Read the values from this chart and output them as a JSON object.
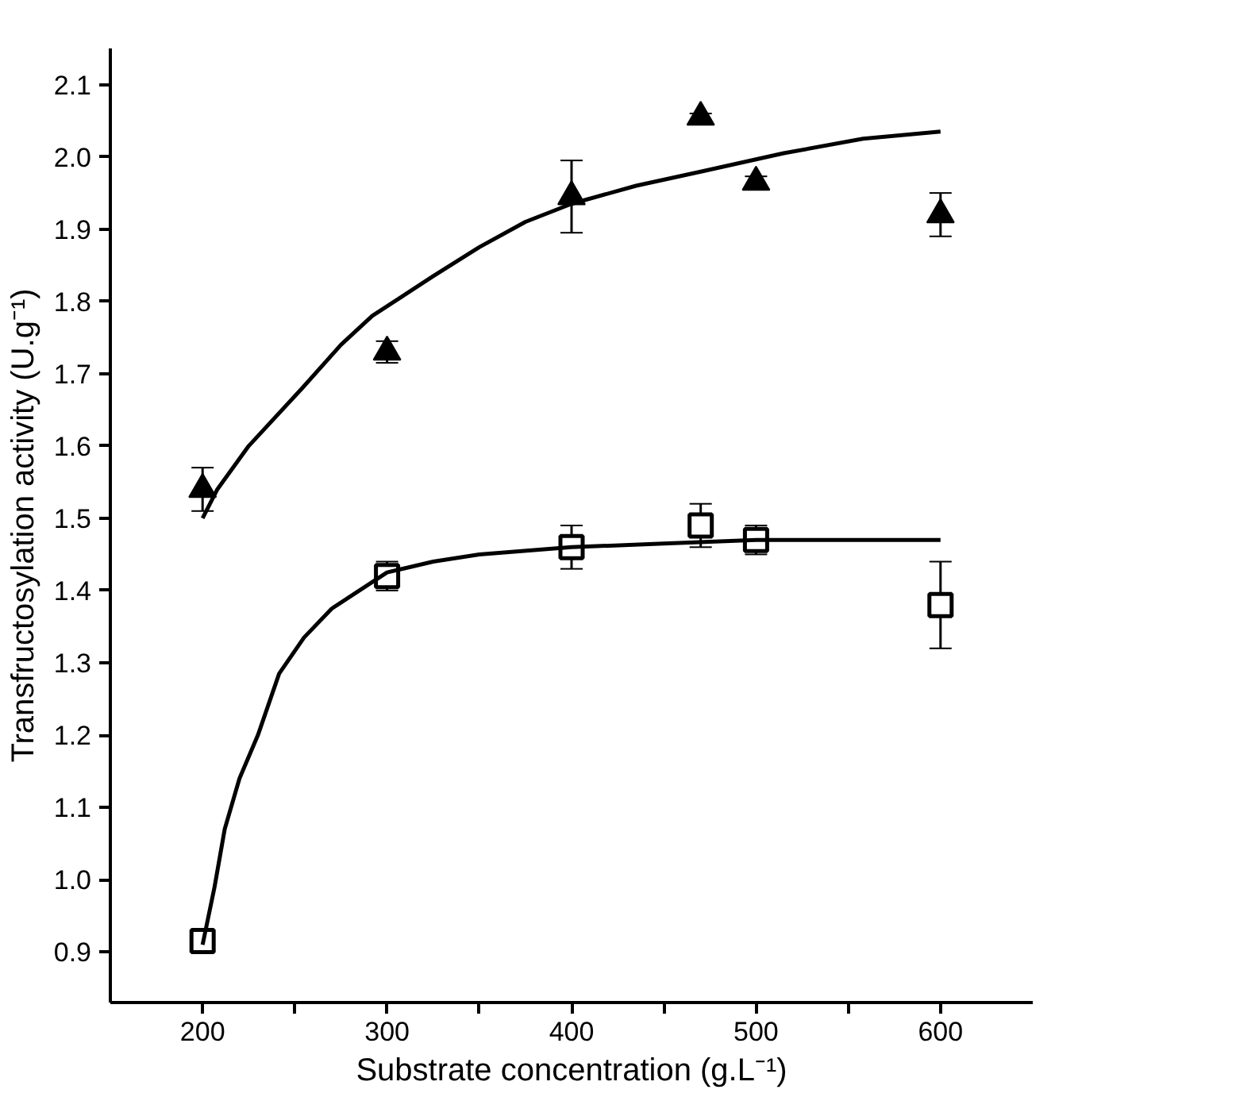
{
  "chart_data": {
    "type": "scatter",
    "xlabel": "Substrate concentration (g.L⁻¹)",
    "ylabel": "Transfructosylation activity (U.g⁻¹)",
    "xlim": [
      150,
      650
    ],
    "ylim": [
      0.83,
      2.15
    ],
    "xticks": [
      200,
      {
        "value": 250,
        "label": null
      },
      300,
      {
        "value": 350,
        "label": null
      },
      400,
      {
        "value": 450,
        "label": null
      },
      500,
      {
        "value": 550,
        "label": null
      },
      600
    ],
    "yticks": [
      0.9,
      {
        "value": 1.0,
        "label": "1.0"
      },
      1.1,
      1.2,
      1.3,
      1.4,
      1.5,
      1.6,
      1.7,
      1.8,
      1.9,
      {
        "value": 2.0,
        "label": "2.0"
      },
      2.1
    ],
    "grid": false,
    "series": [
      {
        "marker": "triangle",
        "color": "#000000",
        "x": [
          200,
          300,
          400,
          470,
          500,
          600
        ],
        "values": [
          1.54,
          1.73,
          1.945,
          2.055,
          1.965,
          1.92
        ],
        "errors": [
          0.03,
          0.015,
          0.05,
          0.005,
          0.008,
          0.03
        ]
      },
      {
        "marker": "square",
        "color": "#000000",
        "x": [
          200,
          300,
          400,
          470,
          500,
          600
        ],
        "values": [
          0.915,
          1.42,
          1.46,
          1.49,
          1.47,
          1.38
        ],
        "errors": [
          0.005,
          0.02,
          0.03,
          0.03,
          0.02,
          0.06
        ]
      },
      {
        "type": "line",
        "line_style": "solid",
        "color": "#000000",
        "x": [
          200,
          208,
          225,
          254,
          275,
          292,
          325,
          350,
          375,
          400,
          435,
          471,
          515,
          558,
          600
        ],
        "values": [
          1.5,
          1.54,
          1.6,
          1.68,
          1.74,
          1.78,
          1.835,
          1.875,
          1.91,
          1.935,
          1.96,
          1.98,
          2.005,
          2.025,
          2.035
        ]
      },
      {
        "type": "line",
        "line_style": "solid",
        "color": "#000000",
        "x": [
          200,
          206.5,
          212,
          220,
          230,
          241.5,
          255,
          270,
          285,
          300,
          325,
          350,
          400,
          450,
          500,
          600
        ],
        "values": [
          0.91,
          0.99,
          1.07,
          1.14,
          1.2,
          1.285,
          1.335,
          1.375,
          1.4,
          1.425,
          1.44,
          1.45,
          1.46,
          1.465,
          1.47,
          1.47
        ]
      }
    ]
  }
}
